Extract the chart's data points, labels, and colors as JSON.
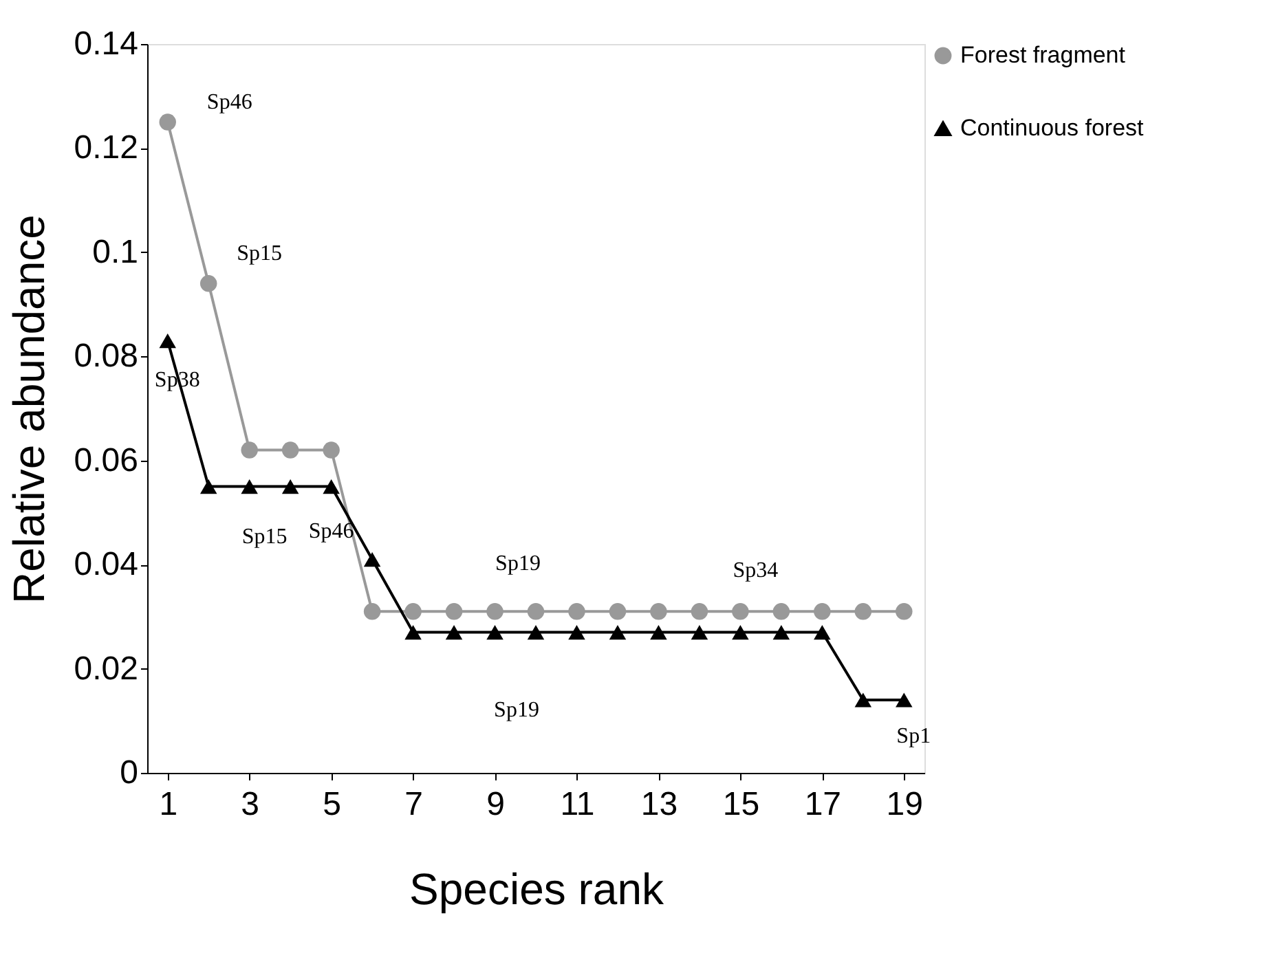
{
  "chart_data": {
    "type": "line",
    "xlabel": "Species rank",
    "ylabel": "Relative abundance",
    "x": [
      1,
      2,
      3,
      4,
      5,
      6,
      7,
      8,
      9,
      10,
      11,
      12,
      13,
      14,
      15,
      16,
      17,
      18,
      19
    ],
    "series": [
      {
        "name": "Forest fragment",
        "color": "#999999",
        "marker": "circle",
        "values": [
          0.125,
          0.094,
          0.062,
          0.062,
          0.062,
          0.031,
          0.031,
          0.031,
          0.031,
          0.031,
          0.031,
          0.031,
          0.031,
          0.031,
          0.031,
          0.031,
          0.031,
          0.031,
          0.031
        ]
      },
      {
        "name": "Continuous forest",
        "color": "#000000",
        "marker": "triangle",
        "values": [
          0.083,
          0.055,
          0.055,
          0.055,
          0.055,
          0.041,
          0.027,
          0.027,
          0.027,
          0.027,
          0.027,
          0.027,
          0.027,
          0.027,
          0.027,
          0.027,
          0.027,
          0.014,
          0.014
        ]
      }
    ],
    "xlim": [
      0.5,
      19.5
    ],
    "xticks": [
      1,
      3,
      5,
      7,
      9,
      11,
      13,
      15,
      17,
      19
    ],
    "ylim": [
      0,
      0.14
    ],
    "yticks": [
      0,
      0.02,
      0.04,
      0.06,
      0.08,
      0.1,
      0.12,
      0.14
    ],
    "grid": false,
    "legend": "top right",
    "line_style": "solid",
    "annotations": [
      {
        "text": "Sp46",
        "x": 1,
        "y": 0.125
      },
      {
        "text": "Sp15",
        "x": 2,
        "y": 0.094
      },
      {
        "text": "Sp38",
        "x": 1,
        "y": 0.083
      },
      {
        "text": "Sp15",
        "x": 3,
        "y": 0.055
      },
      {
        "text": "Sp46",
        "x": 5,
        "y": 0.055
      },
      {
        "text": "Sp19",
        "x": 10,
        "y": 0.031
      },
      {
        "text": "Sp34",
        "x": 15,
        "y": 0.031
      },
      {
        "text": "Sp19",
        "x": 10,
        "y": 0.027
      },
      {
        "text": "Sp1",
        "x": 19,
        "y": 0.014
      }
    ]
  }
}
